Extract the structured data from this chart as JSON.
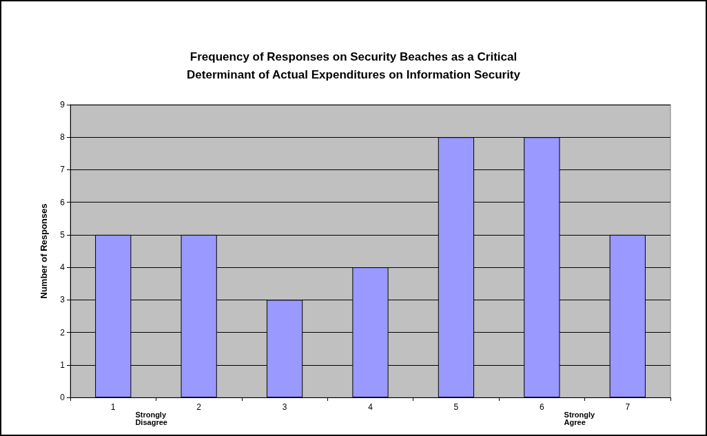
{
  "chart_data": {
    "type": "bar",
    "title": "Frequency of Responses on Security Beaches as a Critical\nDeterminant of Actual Expenditures on Information Security",
    "ylabel": "Number of Responses",
    "categories": [
      "1",
      "2",
      "3",
      "4",
      "5",
      "6",
      "7"
    ],
    "values": [
      5,
      5,
      3,
      4,
      8,
      8,
      5
    ],
    "color": "#9999ff",
    "ylim": [
      0,
      9
    ],
    "yticks": [
      0,
      1,
      2,
      3,
      4,
      5,
      6,
      7,
      8,
      9
    ],
    "grid": "y",
    "annotations": [
      "Strongly Disagree",
      "Strongly Agree"
    ]
  }
}
